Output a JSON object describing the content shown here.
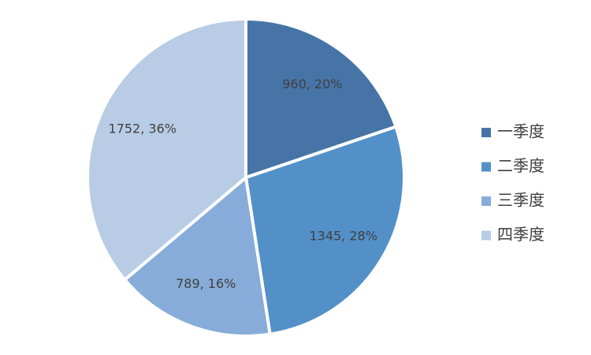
{
  "chart_data": {
    "type": "pie",
    "categories": [
      "一季度",
      "二季度",
      "三季度",
      "四季度"
    ],
    "values": [
      960,
      1345,
      789,
      1752
    ],
    "value_labels": [
      "960, 20%",
      "1345, 28%",
      "789, 16%",
      "1752, 36%"
    ],
    "colors": [
      "#4674a7",
      "#5390c8",
      "#87acd9",
      "#b8cce6"
    ],
    "legend": "right"
  }
}
